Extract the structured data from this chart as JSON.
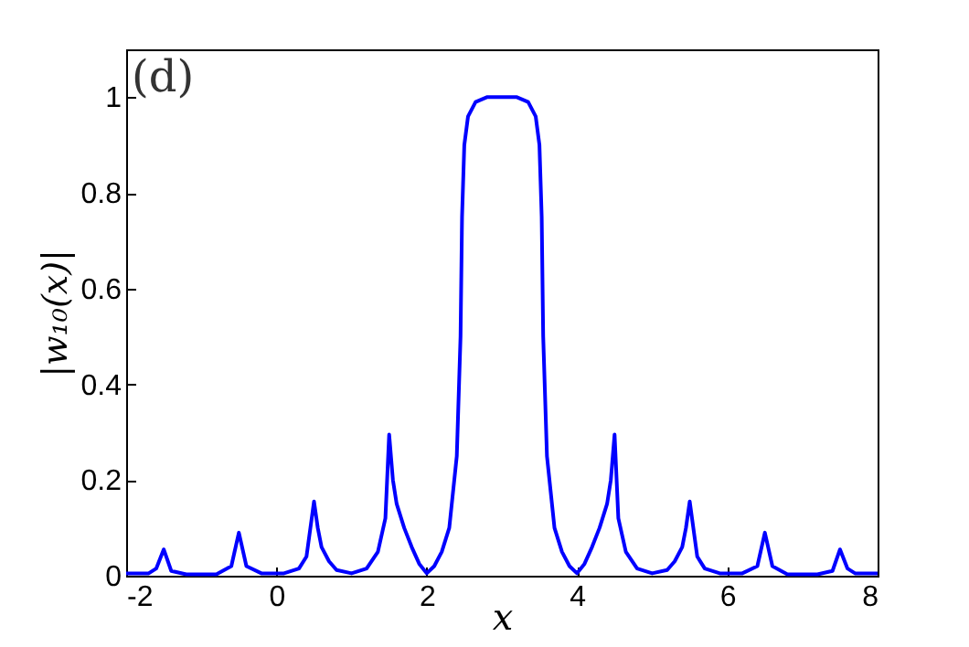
{
  "chart_data": {
    "type": "line",
    "xlabel": "x",
    "ylabel": "|w₁₀(x)|",
    "annotations": [
      "(d)"
    ],
    "xlim": [
      -2,
      8
    ],
    "xticks": [
      -2,
      0,
      2,
      4,
      6,
      8
    ],
    "ylim": [
      0,
      1.1
    ],
    "yticks": [
      0,
      0.2,
      0.4,
      0.6,
      0.8,
      1
    ],
    "grid": false,
    "series": [
      {
        "color": "#0000ff",
        "x": [
          -2,
          -1.7,
          -1.6,
          -1.5,
          -1.4,
          -1.2,
          -0.8,
          -0.6,
          -0.5,
          -0.4,
          -0.2,
          0.1,
          0.3,
          0.4,
          0.5,
          0.55,
          0.6,
          0.7,
          0.8,
          1.0,
          1.2,
          1.35,
          1.45,
          1.5,
          1.55,
          1.6,
          1.7,
          1.8,
          1.9,
          2.0,
          2.1,
          2.2,
          2.3,
          2.4,
          2.45,
          2.47,
          2.5,
          2.55,
          2.65,
          2.8,
          3.0,
          3.2,
          3.35,
          3.45,
          3.5,
          3.53,
          3.55,
          3.6,
          3.7,
          3.8,
          3.9,
          4.0,
          4.1,
          4.2,
          4.3,
          4.4,
          4.45,
          4.5,
          4.55,
          4.65,
          4.8,
          5.0,
          5.2,
          5.3,
          5.4,
          5.45,
          5.5,
          5.6,
          5.7,
          5.9,
          6.2,
          6.4,
          6.5,
          6.6,
          6.8,
          7.2,
          7.4,
          7.5,
          7.6,
          7.7,
          8
        ],
        "values": [
          0.005,
          0.005,
          0.015,
          0.055,
          0.01,
          0.003,
          0.003,
          0.02,
          0.09,
          0.02,
          0.005,
          0.005,
          0.015,
          0.04,
          0.155,
          0.1,
          0.06,
          0.03,
          0.012,
          0.005,
          0.015,
          0.05,
          0.12,
          0.295,
          0.2,
          0.15,
          0.1,
          0.06,
          0.025,
          0.005,
          0.02,
          0.05,
          0.1,
          0.25,
          0.5,
          0.75,
          0.9,
          0.96,
          0.99,
          1.0,
          1.0,
          1.0,
          0.99,
          0.96,
          0.9,
          0.75,
          0.5,
          0.25,
          0.1,
          0.05,
          0.02,
          0.005,
          0.025,
          0.06,
          0.1,
          0.15,
          0.2,
          0.295,
          0.12,
          0.05,
          0.015,
          0.005,
          0.012,
          0.03,
          0.06,
          0.1,
          0.155,
          0.04,
          0.015,
          0.005,
          0.005,
          0.02,
          0.09,
          0.02,
          0.003,
          0.003,
          0.01,
          0.055,
          0.015,
          0.005,
          0.005
        ]
      }
    ]
  }
}
